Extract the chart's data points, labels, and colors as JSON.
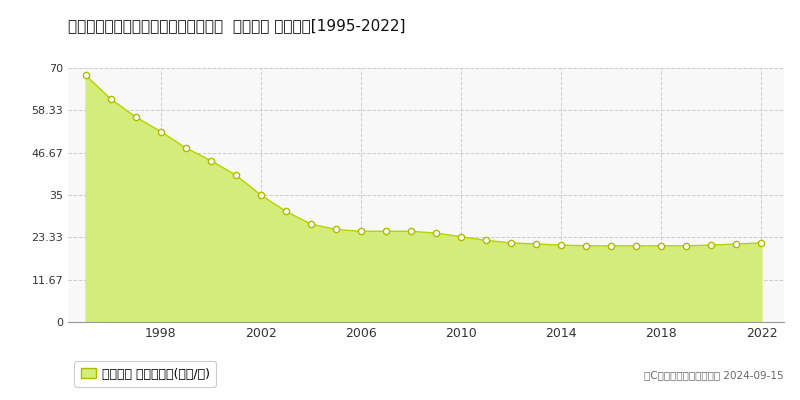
{
  "title": "大阪府藤井寺市津堂２丁目３１番１外  地価公示 地価推移[1995-2022]",
  "years": [
    1995,
    1996,
    1997,
    1998,
    1999,
    2000,
    2001,
    2002,
    2003,
    2004,
    2005,
    2006,
    2007,
    2008,
    2009,
    2010,
    2011,
    2012,
    2013,
    2014,
    2015,
    2016,
    2017,
    2018,
    2019,
    2020,
    2021,
    2022
  ],
  "values": [
    68.0,
    61.5,
    56.5,
    52.5,
    48.0,
    44.5,
    40.5,
    35.0,
    30.5,
    27.0,
    25.5,
    25.0,
    25.0,
    25.0,
    24.5,
    23.5,
    22.5,
    21.8,
    21.5,
    21.2,
    21.0,
    21.0,
    21.0,
    21.0,
    21.0,
    21.2,
    21.5,
    21.8
  ],
  "fill_color": "#d4ed7a",
  "line_color": "#b8d400",
  "marker_facecolor": "#ffffff",
  "marker_edgecolor": "#aabb00",
  "bg_color": "#ffffff",
  "plot_bg_color": "#f8f8f8",
  "grid_color": "#cccccc",
  "yticks": [
    0,
    11.67,
    23.33,
    35,
    46.67,
    58.33,
    70
  ],
  "ytick_labels": [
    "0",
    "11.67",
    "23.33",
    "35",
    "46.67",
    "58.33",
    "70"
  ],
  "xtick_positions": [
    1998,
    2002,
    2006,
    2010,
    2014,
    2018,
    2022
  ],
  "ylim": [
    0,
    70
  ],
  "xlim_left": 1994.3,
  "xlim_right": 2022.9,
  "legend_label": "地価公示 平均坪単価(万円/坪)",
  "copyright_text": "（C）土地価格ドットコム 2024-09-15"
}
